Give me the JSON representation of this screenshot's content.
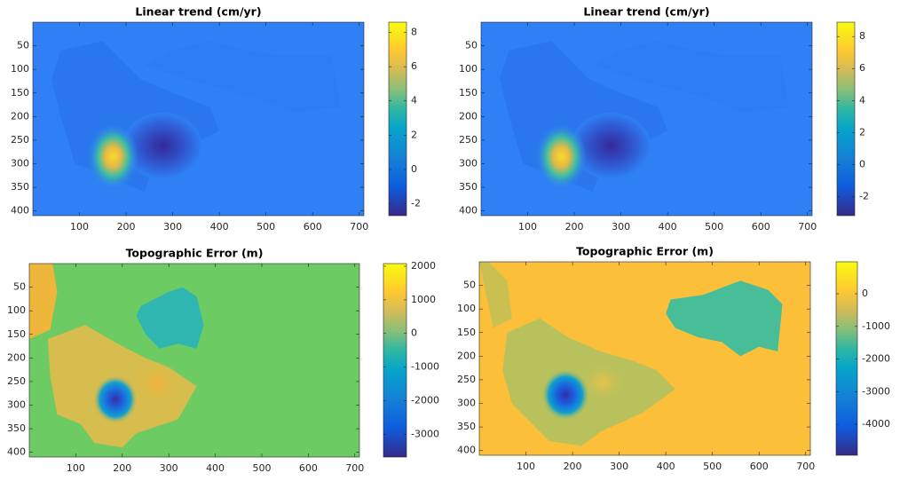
{
  "chart_data": [
    {
      "type": "image",
      "title": "Linear trend (cm/yr)",
      "xlim": [
        0,
        710
      ],
      "ylim": [
        0,
        410
      ],
      "y_reversed": true,
      "xticks": [
        100,
        200,
        300,
        400,
        500,
        600,
        700
      ],
      "yticks": [
        50,
        100,
        150,
        200,
        250,
        300,
        350,
        400
      ],
      "colormap": "parula",
      "colorbar": {
        "clim": [
          -2.7,
          8.6
        ],
        "ticks": [
          -2,
          0,
          2,
          4,
          6,
          8
        ]
      }
    },
    {
      "type": "image",
      "title": "Linear trend (cm/yr)",
      "xlim": [
        0,
        710
      ],
      "ylim": [
        0,
        410
      ],
      "y_reversed": true,
      "xticks": [
        100,
        200,
        300,
        400,
        500,
        600,
        700
      ],
      "yticks": [
        50,
        100,
        150,
        200,
        250,
        300,
        350,
        400
      ],
      "colormap": "parula",
      "colorbar": {
        "clim": [
          -3.2,
          8.9
        ],
        "ticks": [
          -2,
          0,
          2,
          4,
          6,
          8
        ]
      }
    },
    {
      "type": "image",
      "title": "Topographic Error (m)",
      "xlim": [
        0,
        710
      ],
      "ylim": [
        0,
        410
      ],
      "y_reversed": true,
      "xticks": [
        100,
        200,
        300,
        400,
        500,
        600,
        700
      ],
      "yticks": [
        50,
        100,
        150,
        200,
        250,
        300,
        350,
        400
      ],
      "colormap": "parula",
      "colorbar": {
        "clim": [
          -3680,
          2080
        ],
        "ticks": [
          -3000,
          -2000,
          -1000,
          0,
          1000,
          2000
        ]
      }
    },
    {
      "type": "image",
      "title": "Topographic Error (m)",
      "xlim": [
        0,
        710
      ],
      "ylim": [
        0,
        410
      ],
      "y_reversed": true,
      "xticks": [
        100,
        200,
        300,
        400,
        500,
        600,
        700
      ],
      "yticks": [
        50,
        100,
        150,
        200,
        250,
        300,
        350,
        400
      ],
      "colormap": "parula",
      "colorbar": {
        "clim": [
          -4950,
          980
        ],
        "ticks": [
          -4000,
          -3000,
          -2000,
          -1000,
          0
        ]
      }
    }
  ]
}
